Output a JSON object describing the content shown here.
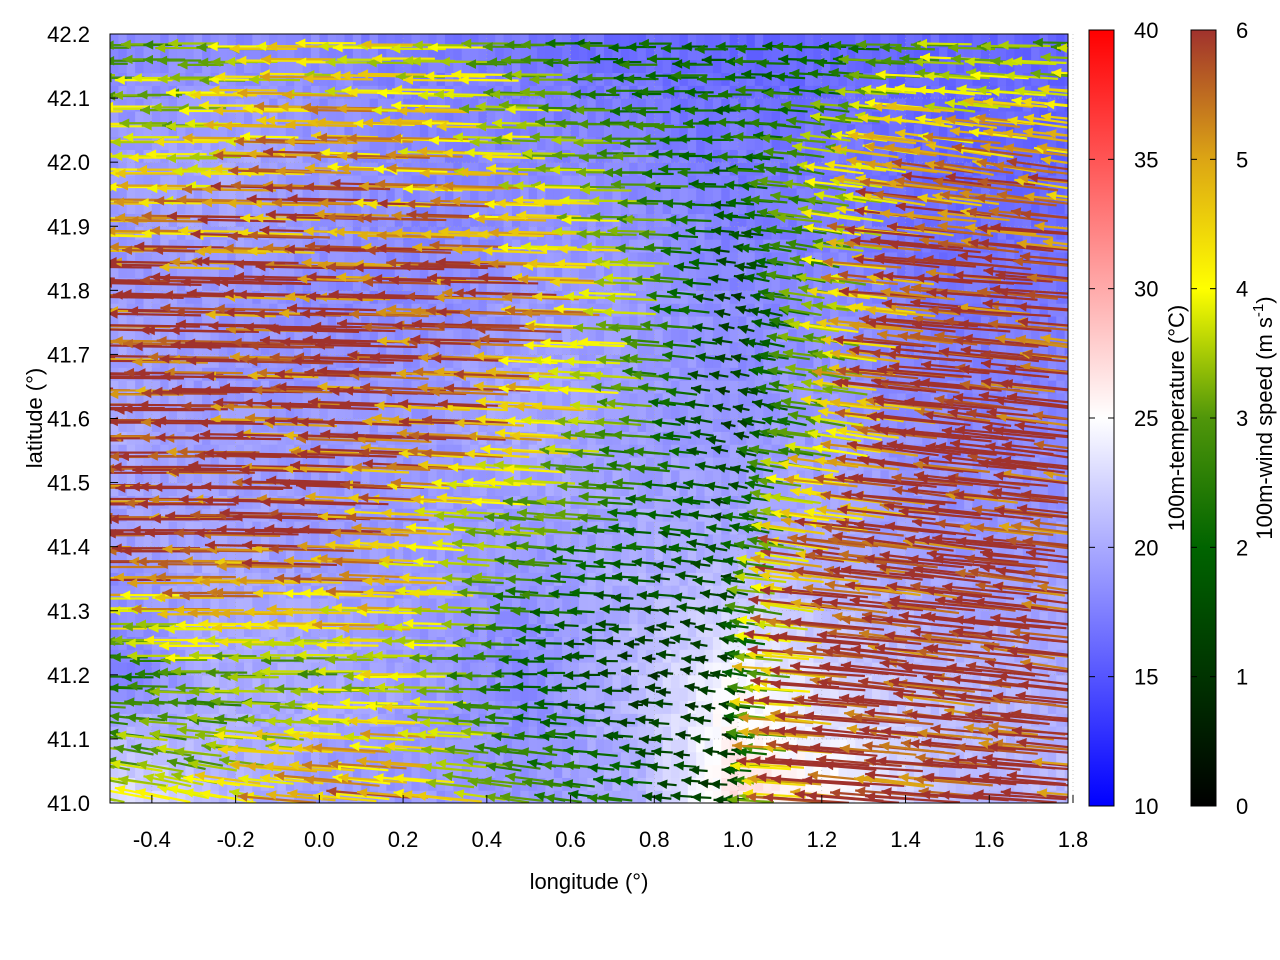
{
  "chart_data": {
    "type": "heatmap",
    "xlabel": "longitude (°)",
    "ylabel": "latitude (°)",
    "xlim": [
      -0.5,
      1.8
    ],
    "ylim": [
      41.0,
      42.2
    ],
    "xticks": [
      "-0.4",
      "-0.2",
      "0.0",
      "0.2",
      "0.4",
      "0.6",
      "0.8",
      "1.0",
      "1.2",
      "1.4",
      "1.6",
      "1.8"
    ],
    "yticks": [
      "41.0",
      "41.1",
      "41.2",
      "41.3",
      "41.4",
      "41.5",
      "41.6",
      "41.7",
      "41.8",
      "41.9",
      "42.0",
      "42.1",
      "42.2"
    ],
    "grid": true,
    "temperature": {
      "label": "100m-temperature (°C)",
      "range": [
        10,
        40
      ],
      "ticks": [
        "10",
        "15",
        "20",
        "25",
        "30",
        "35",
        "40"
      ],
      "colors": {
        "low": "#0000ff",
        "mid": "#ffffff",
        "high": "#ff0000"
      },
      "lon": [
        -0.5,
        -0.25,
        0,
        0.25,
        0.5,
        0.75,
        1.0,
        1.25,
        1.5,
        1.8
      ],
      "lat": [
        41.0,
        41.2,
        41.4,
        41.6,
        41.8,
        42.0,
        42.2
      ],
      "values": [
        [
          24,
          21,
          19,
          19,
          19,
          20,
          27,
          25,
          21,
          21
        ],
        [
          17,
          20,
          20,
          19,
          18,
          21,
          25,
          22,
          21,
          20
        ],
        [
          19,
          20,
          19,
          19,
          19,
          20,
          20,
          20,
          19,
          19
        ],
        [
          20,
          19,
          19,
          19,
          20,
          19,
          19,
          19,
          18,
          18
        ],
        [
          19,
          19,
          18,
          18,
          19,
          19,
          18,
          18,
          17,
          17
        ],
        [
          19,
          20,
          19,
          18,
          18,
          18,
          17,
          17,
          16,
          16
        ],
        [
          18,
          18,
          18,
          17,
          17,
          16,
          16,
          16,
          16,
          16
        ]
      ]
    },
    "wind": {
      "label": "100m-wind speed (m s",
      "label_sup": "-1",
      "label_end": ")",
      "range": [
        0,
        6
      ],
      "ticks": [
        "0",
        "1",
        "2",
        "3",
        "4",
        "5",
        "6"
      ],
      "colors": [
        "#000000",
        "#003300",
        "#006400",
        "#50960a",
        "#ffff00",
        "#dca514",
        "#a0322d"
      ],
      "lon": [
        -0.5,
        -0.25,
        0,
        0.25,
        0.5,
        0.75,
        1.0,
        1.25,
        1.5,
        1.8
      ],
      "lat": [
        41.0,
        41.2,
        41.4,
        41.6,
        41.8,
        42.0,
        42.2
      ],
      "u": [
        [
          -4,
          -3,
          -5,
          -5,
          -3,
          -2,
          -1,
          -6,
          -6,
          -6
        ],
        [
          -2,
          -3,
          -3,
          -4,
          -2,
          -1,
          -1,
          -6,
          -6,
          -6
        ],
        [
          -6,
          -6,
          -6,
          -5,
          -3,
          -2,
          -1.5,
          -5,
          -6,
          -6
        ],
        [
          -6,
          -6,
          -6,
          -6,
          -5,
          -3,
          -1,
          -3,
          -6,
          -6
        ],
        [
          -6,
          -6,
          -6,
          -6,
          -6,
          -4,
          -1,
          -3,
          -6,
          -6
        ],
        [
          -4,
          -4,
          -5,
          -5,
          -4,
          -3,
          -2,
          -3,
          -5,
          -5
        ],
        [
          -3,
          -3,
          -4,
          -4,
          -3,
          -2,
          -2,
          -2,
          -3,
          -3
        ]
      ],
      "v": [
        [
          1.5,
          1.5,
          1,
          1,
          1,
          0.5,
          0,
          1,
          1,
          1
        ],
        [
          0,
          0,
          0,
          0,
          0,
          0,
          0.5,
          1,
          1.5,
          1.5
        ],
        [
          0,
          0,
          0.3,
          0.5,
          0.5,
          0.3,
          0.5,
          1.5,
          1.5,
          1.5
        ],
        [
          0,
          0,
          0.3,
          0.5,
          0.5,
          0.5,
          0.5,
          1,
          1.5,
          1.5
        ],
        [
          0.3,
          0.3,
          0.3,
          0.3,
          0.3,
          0.3,
          0.5,
          1,
          1,
          1
        ],
        [
          0,
          0,
          0.3,
          0.3,
          0.3,
          0,
          0,
          1,
          1.5,
          1.5
        ],
        [
          0,
          0,
          0,
          0,
          0,
          0,
          0,
          0,
          0,
          0
        ]
      ]
    }
  }
}
